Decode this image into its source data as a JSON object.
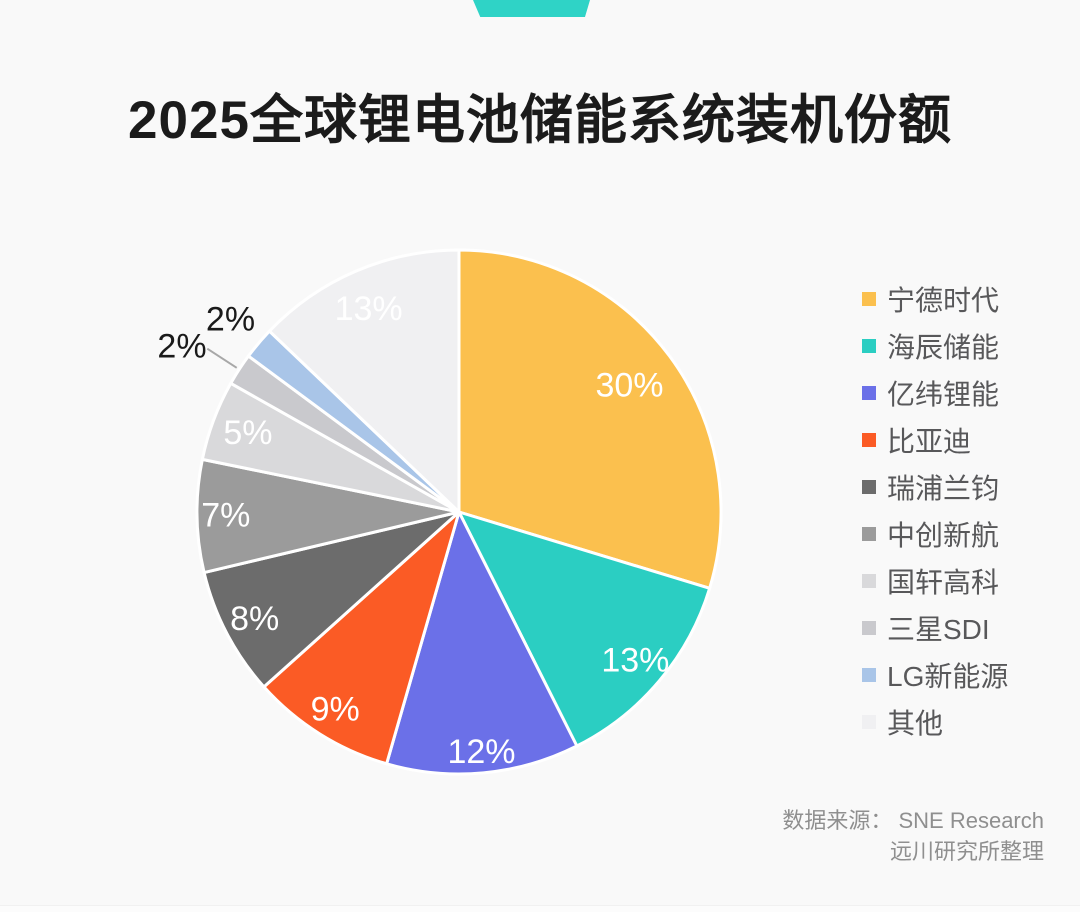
{
  "header": {
    "accent_color": "#2FD3C6"
  },
  "chart_data": {
    "type": "pie",
    "title": "2025全球锂电池储能系统装机份额",
    "label_format": "{value}%",
    "start_angle_deg": 0,
    "direction": "clockwise",
    "legend_position": "right",
    "grid": false,
    "label_text_color_inside": "#FFFFFF",
    "label_text_color_outside": "#1A1A1A",
    "slice_border_color": "#FFFFFF",
    "series": [
      {
        "name": "宁德时代",
        "value": 30,
        "color": "#FBC04E"
      },
      {
        "name": "海辰储能",
        "value": 13,
        "color": "#2BCEC2"
      },
      {
        "name": "亿纬锂能",
        "value": 12,
        "color": "#6B70E8"
      },
      {
        "name": "比亚迪",
        "value": 9,
        "color": "#FB5B25"
      },
      {
        "name": "瑞浦兰钧",
        "value": 8,
        "color": "#6C6C6C"
      },
      {
        "name": "中创新航",
        "value": 7,
        "color": "#9B9B9B"
      },
      {
        "name": "国轩高科",
        "value": 5,
        "color": "#D9D9DB"
      },
      {
        "name": "三星SDI",
        "value": 2,
        "color": "#C9C9CD"
      },
      {
        "name": "LG新能源",
        "value": 2,
        "color": "#A9C5E8"
      },
      {
        "name": "其他",
        "value": 13,
        "color": "#F0F0F2"
      }
    ]
  },
  "source": {
    "line1": "数据来源：  SNE Research",
    "line2": "远川研究所整理"
  }
}
